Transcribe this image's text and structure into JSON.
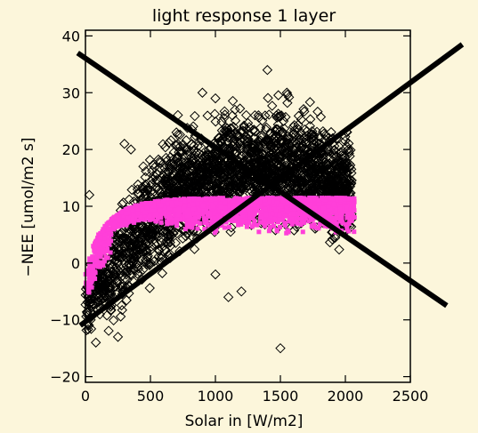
{
  "chart_data": {
    "type": "scatter",
    "title": "light response 1 layer",
    "xlabel": "Solar in [W/m2]",
    "ylabel": "−NEE [umol/m2 s]",
    "xlim": [
      0,
      2500
    ],
    "ylim": [
      -21,
      41
    ],
    "x_ticks": [
      "0",
      "500",
      "1000",
      "1500",
      "2000",
      "2500"
    ],
    "y_ticks": [
      "−20",
      "−10",
      "0",
      "10",
      "20",
      "30",
      "40"
    ],
    "grid": false,
    "colors": {
      "background": "#fcf6db",
      "observed": "#000000",
      "model": "#ff3fd9",
      "cross": "#000000"
    },
    "series": [
      {
        "marker": "diamond-open",
        "color": "#000000",
        "sample_points": [
          [
            20,
            -6
          ],
          [
            40,
            -10
          ],
          [
            60,
            -4
          ],
          [
            90,
            -2
          ],
          [
            130,
            1
          ],
          [
            180,
            3
          ],
          [
            250,
            0
          ],
          [
            320,
            -3
          ],
          [
            400,
            2
          ],
          [
            480,
            5
          ],
          [
            560,
            8
          ],
          [
            640,
            6
          ],
          [
            720,
            10
          ],
          [
            800,
            13
          ],
          [
            880,
            15
          ],
          [
            960,
            17
          ],
          [
            1040,
            14
          ],
          [
            1120,
            19
          ],
          [
            1200,
            16
          ],
          [
            1280,
            21
          ],
          [
            1360,
            18
          ],
          [
            1440,
            15
          ],
          [
            1520,
            20
          ],
          [
            1600,
            17
          ],
          [
            1700,
            14
          ],
          [
            1800,
            16
          ],
          [
            1900,
            13
          ],
          [
            2000,
            12
          ],
          [
            900,
            30
          ],
          [
            1000,
            29
          ],
          [
            1400,
            34
          ],
          [
            1550,
            30
          ],
          [
            1150,
            27
          ],
          [
            300,
            21
          ],
          [
            350,
            20
          ],
          [
            1500,
            -15
          ],
          [
            1100,
            -6
          ],
          [
            1200,
            -5
          ],
          [
            1000,
            -2
          ],
          [
            250,
            -13
          ],
          [
            80,
            -14
          ],
          [
            30,
            12
          ],
          [
            700,
            23
          ],
          [
            1600,
            24
          ]
        ]
      },
      {
        "marker": "filled-square",
        "color": "#ff3fd9",
        "sample_points": [
          [
            10,
            -4
          ],
          [
            30,
            0
          ],
          [
            60,
            3
          ],
          [
            100,
            5
          ],
          [
            150,
            6.5
          ],
          [
            200,
            7.5
          ],
          [
            300,
            8.5
          ],
          [
            400,
            9.3
          ],
          [
            500,
            9.8
          ],
          [
            600,
            10.2
          ],
          [
            700,
            10.5
          ],
          [
            800,
            10.7
          ],
          [
            900,
            10.9
          ],
          [
            1000,
            11
          ],
          [
            1200,
            11.1
          ],
          [
            1400,
            11
          ],
          [
            1600,
            10.8
          ],
          [
            1800,
            10.5
          ],
          [
            1950,
            9.5
          ],
          [
            2050,
            8.5
          ],
          [
            700,
            8
          ],
          [
            1000,
            9
          ],
          [
            1500,
            9
          ],
          [
            1900,
            7
          ]
        ]
      }
    ],
    "cross_lines": [
      {
        "x1": -60,
        "y1": 37,
        "x2": 2780,
        "y2": -7.5
      },
      {
        "x1": -40,
        "y1": -11,
        "x2": 2900,
        "y2": 38.5
      }
    ]
  }
}
